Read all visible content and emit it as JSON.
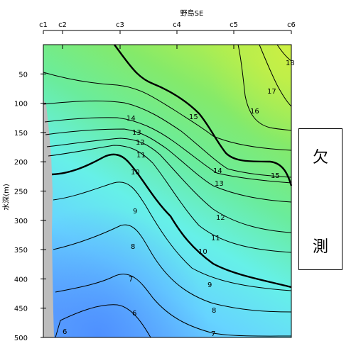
{
  "chart_data": {
    "type": "contour",
    "title": "野島SE",
    "ylabel": "水深(m)",
    "xlabel": "",
    "x_stations": [
      "c1",
      "c2",
      "c3",
      "c4",
      "c5",
      "c6"
    ],
    "y_ticks": [
      50,
      100,
      150,
      200,
      250,
      300,
      350,
      400,
      450,
      500
    ],
    "ylim": [
      0,
      500
    ],
    "y_inverted": true,
    "missing_label": [
      "欠",
      "測"
    ],
    "colorscale": [
      "#5aa0ff",
      "#66d4ff",
      "#66f0e8",
      "#6aec9c",
      "#84ea6a",
      "#b4ee4e"
    ],
    "contour_labels": [
      "6",
      "6",
      "7",
      "7",
      "8",
      "8",
      "9",
      "9",
      "10",
      "10",
      "11",
      "11",
      "12",
      "12",
      "13",
      "13",
      "14",
      "14",
      "15",
      "15",
      "16",
      "17",
      "18"
    ],
    "bold_levels": [
      10,
      15
    ]
  }
}
